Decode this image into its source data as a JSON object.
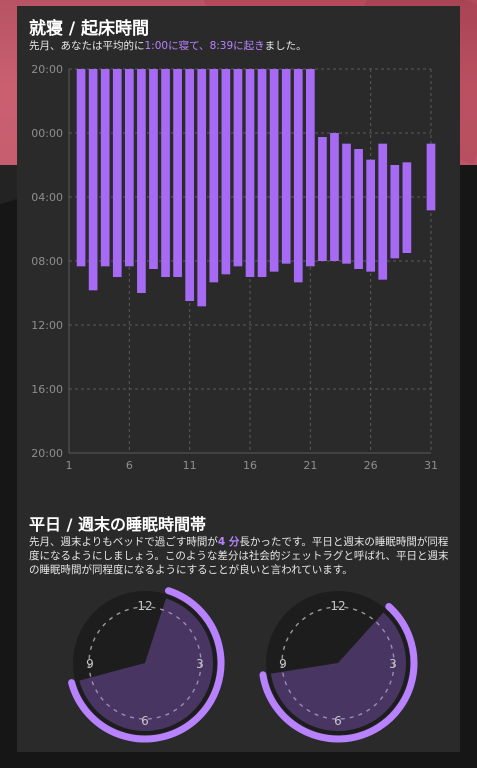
{
  "colors": {
    "accent": "#a66af5",
    "accent_light": "#b882ff",
    "hero": "#c35467",
    "card": "#2a2a2a",
    "grid": "#5a5a5a",
    "tick": "#8e8e8e"
  },
  "bedtime_section": {
    "title": "就寝 / 起床時間",
    "summary_prefix": "先月、あなたは平均的に",
    "summary_bedtime": "1:00に寝て、",
    "summary_wake": "8:39に起き",
    "summary_suffix": "ました。"
  },
  "chart_data": {
    "type": "bar",
    "subtype": "floating-range",
    "x_ticks": [
      "1",
      "6",
      "11",
      "16",
      "21",
      "26",
      "31"
    ],
    "y_ticks": [
      "20:00",
      "00:00",
      "04:00",
      "08:00",
      "12:00",
      "16:00",
      "20:00"
    ],
    "y_range_hours": [
      20,
      44
    ],
    "grid": true,
    "x_range": [
      1,
      31
    ],
    "bars": [
      {
        "day": 2,
        "start": "20:00",
        "end": "08:20"
      },
      {
        "day": 3,
        "start": "20:00",
        "end": "09:50"
      },
      {
        "day": 4,
        "start": "20:00",
        "end": "08:20"
      },
      {
        "day": 5,
        "start": "20:00",
        "end": "09:00"
      },
      {
        "day": 6,
        "start": "20:00",
        "end": "08:20"
      },
      {
        "day": 7,
        "start": "20:00",
        "end": "10:00"
      },
      {
        "day": 8,
        "start": "20:00",
        "end": "08:30"
      },
      {
        "day": 9,
        "start": "20:00",
        "end": "09:00"
      },
      {
        "day": 10,
        "start": "20:00",
        "end": "09:00"
      },
      {
        "day": 11,
        "start": "20:00",
        "end": "10:30"
      },
      {
        "day": 12,
        "start": "20:00",
        "end": "10:50"
      },
      {
        "day": 13,
        "start": "20:00",
        "end": "09:20"
      },
      {
        "day": 14,
        "start": "20:00",
        "end": "08:50"
      },
      {
        "day": 15,
        "start": "20:00",
        "end": "08:20"
      },
      {
        "day": 16,
        "start": "20:00",
        "end": "09:00"
      },
      {
        "day": 17,
        "start": "20:00",
        "end": "09:00"
      },
      {
        "day": 18,
        "start": "20:00",
        "end": "08:40"
      },
      {
        "day": 19,
        "start": "20:00",
        "end": "08:10"
      },
      {
        "day": 20,
        "start": "20:00",
        "end": "09:20"
      },
      {
        "day": 21,
        "start": "20:00",
        "end": "08:20"
      },
      {
        "day": 22,
        "start": "00:15",
        "end": "08:00"
      },
      {
        "day": 23,
        "start": "00:00",
        "end": "08:00"
      },
      {
        "day": 24,
        "start": "00:40",
        "end": "08:10"
      },
      {
        "day": 25,
        "start": "01:00",
        "end": "08:30"
      },
      {
        "day": 26,
        "start": "01:40",
        "end": "08:40"
      },
      {
        "day": 27,
        "start": "00:40",
        "end": "09:10"
      },
      {
        "day": 28,
        "start": "02:00",
        "end": "07:50"
      },
      {
        "day": 29,
        "start": "01:50",
        "end": "07:30"
      },
      {
        "day": 31,
        "start": "00:40",
        "end": "04:50"
      }
    ]
  },
  "sleep_window_section": {
    "title": "平日 / 週末の睡眠時間帯",
    "text_1": "先月、週末よりもベッドで過ごす時間が",
    "highlight": "4 分",
    "text_2": "長かったです。平日と週末の睡眠時間が同程度になるようにしましょう。このような差分は社会的ジェットラグと呼ばれ、平日と週末の睡眠時間が同程度になるようにすることが良いと言われています。"
  },
  "dials": {
    "labels": {
      "top": "12",
      "right": "3",
      "bottom": "6",
      "left": "9"
    },
    "weekday": {
      "bedtime_hour": 0.6,
      "wake_hour": 8.5
    },
    "weekend": {
      "bedtime_hour": 1.4,
      "wake_hour": 8.7
    }
  }
}
